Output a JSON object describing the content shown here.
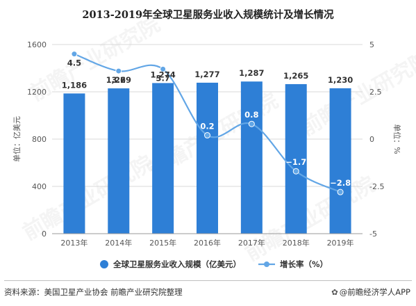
{
  "title": "2013-2019年全球卫星服务业收入规模统计及增长情况",
  "source": "资料来源：美国卫星产业协会 前瞻产业研究院整理",
  "credit": "@前瞻经济学人APP",
  "credit_icon": "paw-icon",
  "watermark": "前瞻产业研究院",
  "colors": {
    "bar": "#2e7fd6",
    "line": "#62a6e6",
    "grid": "#d9d9d9",
    "axis_text": "#555555"
  },
  "chart_data": {
    "type": "bar",
    "categories": [
      "2013年",
      "2014年",
      "2015年",
      "2016年",
      "2017年",
      "2018年",
      "2019年"
    ],
    "series": [
      {
        "name": "全球卫星服务业收入规模（亿美元）",
        "type": "bar",
        "axis": "left",
        "values": [
          1186,
          1229,
          1274,
          1277,
          1287,
          1265,
          1230
        ],
        "labels": [
          "1,186",
          "1,229",
          "1,274",
          "1,277",
          "1,287",
          "1,265",
          "1,230"
        ]
      },
      {
        "name": "增长率（%）",
        "type": "line",
        "axis": "right",
        "values": [
          4.5,
          3.6,
          3.7,
          0.2,
          0.8,
          -1.7,
          -2.8
        ],
        "labels": [
          "4.5",
          "3.6",
          "3.7",
          "0.2",
          "0.8",
          "−1.7",
          "−2.8"
        ]
      }
    ],
    "ylabel": "单位：亿美元",
    "y2label": "单位：%",
    "ylim": [
      0,
      1600
    ],
    "y2lim": [
      -5,
      5
    ],
    "yticks": [
      "0",
      "400",
      "800",
      "1200",
      "1600"
    ],
    "y2ticks": [
      "-5",
      "-2.5",
      "0",
      "2.5",
      "5"
    ],
    "grid": true,
    "legend_position": "bottom"
  }
}
